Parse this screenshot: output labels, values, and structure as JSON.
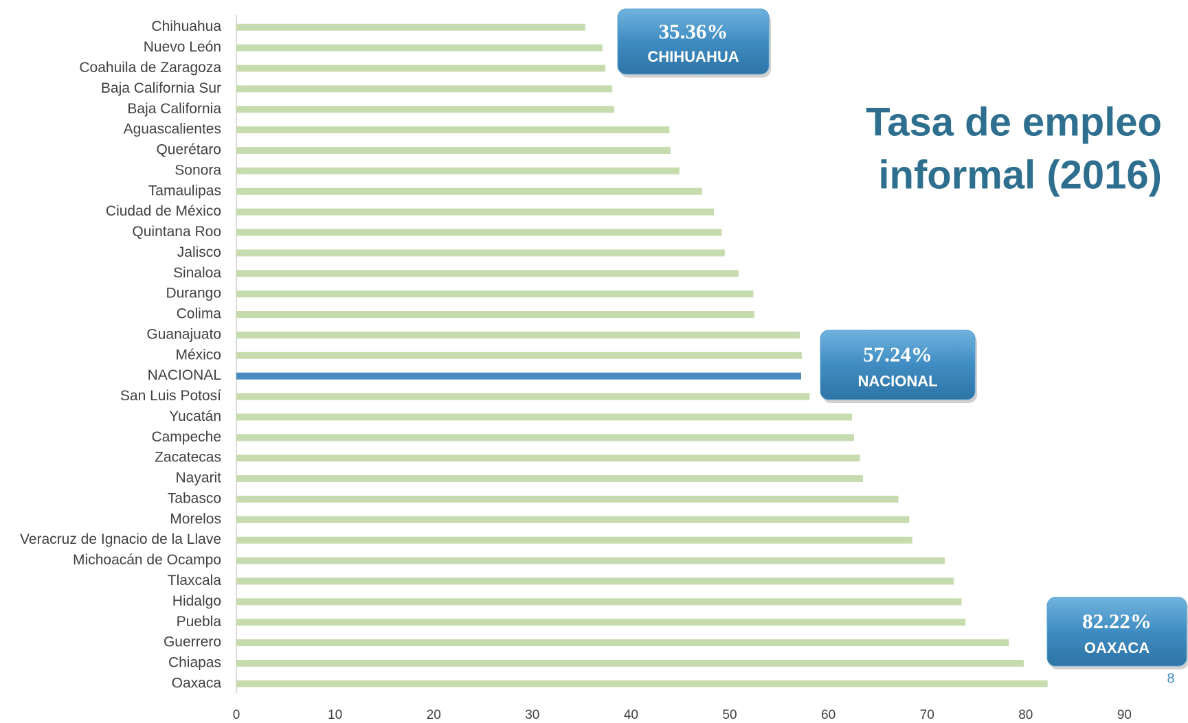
{
  "chart_data": {
    "type": "bar",
    "orientation": "horizontal",
    "title": [
      "Tasa de empleo",
      "informal (2016)"
    ],
    "categories": [
      "Chihuahua",
      "Nuevo León",
      "Coahuila de Zaragoza",
      "Baja California Sur",
      "Baja California",
      "Aguascalientes",
      "Querétaro",
      "Sonora",
      "Tamaulipas",
      "Ciudad de México",
      "Quintana Roo",
      "Jalisco",
      "Sinaloa",
      "Durango",
      "Colima",
      "Guanajuato",
      "México",
      "NACIONAL",
      "San Luis Potosí",
      "Yucatán",
      "Campeche",
      "Zacatecas",
      "Nayarit",
      "Tabasco",
      "Morelos",
      "Veracruz de Ignacio de la Llave",
      "Michoacán de Ocampo",
      "Tlaxcala",
      "Hidalgo",
      "Puebla",
      "Guerrero",
      "Chiapas",
      "Oaxaca"
    ],
    "values": [
      35.36,
      37.1,
      37.4,
      38.1,
      38.3,
      43.9,
      44.0,
      44.9,
      47.2,
      48.4,
      49.2,
      49.5,
      50.9,
      52.4,
      52.5,
      57.1,
      57.3,
      57.24,
      58.1,
      62.4,
      62.6,
      63.2,
      63.5,
      67.1,
      68.2,
      68.5,
      71.8,
      72.7,
      73.5,
      73.9,
      78.3,
      79.8,
      82.22
    ],
    "color": "#c6dcae",
    "highlight_color": "#4a8bbf",
    "highlight_category": "NACIONAL",
    "xlim": [
      0,
      95
    ],
    "xticks": [
      0,
      10,
      20,
      30,
      40,
      50,
      60,
      70,
      80,
      90
    ],
    "grid": false,
    "annotations": [
      {
        "value_label": "35.36%",
        "name": "CHIHUAHUA"
      },
      {
        "value_label": "57.24%",
        "name": "NACIONAL"
      },
      {
        "value_label": "82.22%",
        "name": "OAXACA"
      }
    ],
    "page_number": "8"
  }
}
